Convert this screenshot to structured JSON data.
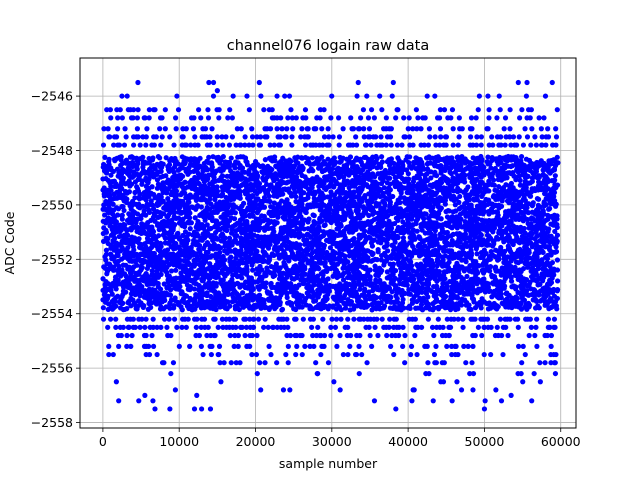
{
  "chart_data": {
    "type": "scatter",
    "title": "channel076 logain raw data",
    "xlabel": "sample number",
    "ylabel": "ADC Code",
    "xlim": [
      -3000,
      62000
    ],
    "ylim": [
      -2558.2,
      -2544.6
    ],
    "grid": true,
    "marker_color": "#0000ff",
    "x_ticks": [
      0,
      10000,
      20000,
      30000,
      40000,
      50000,
      60000
    ],
    "x_tick_labels": [
      "0",
      "10000",
      "20000",
      "30000",
      "40000",
      "50000",
      "60000"
    ],
    "y_ticks": [
      -2546,
      -2548,
      -2550,
      -2552,
      -2554,
      -2556,
      -2558
    ],
    "y_tick_labels": [
      "−2546",
      "−2548",
      "−2550",
      "−2552",
      "−2554",
      "−2556",
      "−2558"
    ],
    "x_range": [
      0,
      59500
    ],
    "dense_band": [
      -2553.8,
      -2548.2
    ],
    "levels": [
      -2545.5,
      -2546.0,
      -2546.5,
      -2546.8,
      -2547.2,
      -2547.5,
      -2547.8,
      -2554.2,
      -2554.5,
      -2554.8,
      -2555.2,
      -2555.5,
      -2555.8,
      -2556.2,
      -2556.5,
      -2556.8,
      -2557.2,
      -2557.5
    ],
    "outliers": [
      {
        "x": 14500,
        "y": -2545.5
      },
      {
        "x": 20500,
        "y": -2545.5
      },
      {
        "x": 2500,
        "y": -2546.0
      },
      {
        "x": 9700,
        "y": -2546.0
      },
      {
        "x": 15000,
        "y": -2545.8
      },
      {
        "x": 42500,
        "y": -2546.0
      },
      {
        "x": 43500,
        "y": -2546.0
      },
      {
        "x": 55500,
        "y": -2546.0
      },
      {
        "x": 58000,
        "y": -2546.0
      },
      {
        "x": 4700,
        "y": -2557.2
      },
      {
        "x": 5500,
        "y": -2557.0
      },
      {
        "x": 12300,
        "y": -2557.0
      },
      {
        "x": 40500,
        "y": -2557.2
      },
      {
        "x": 50000,
        "y": -2557.5
      },
      {
        "x": 53500,
        "y": -2557.0
      },
      {
        "x": 9500,
        "y": -2556.8
      },
      {
        "x": 24500,
        "y": -2556.8
      },
      {
        "x": 40800,
        "y": -2556.8
      },
      {
        "x": 47000,
        "y": -2556.8
      },
      {
        "x": 51500,
        "y": -2556.8
      }
    ]
  }
}
